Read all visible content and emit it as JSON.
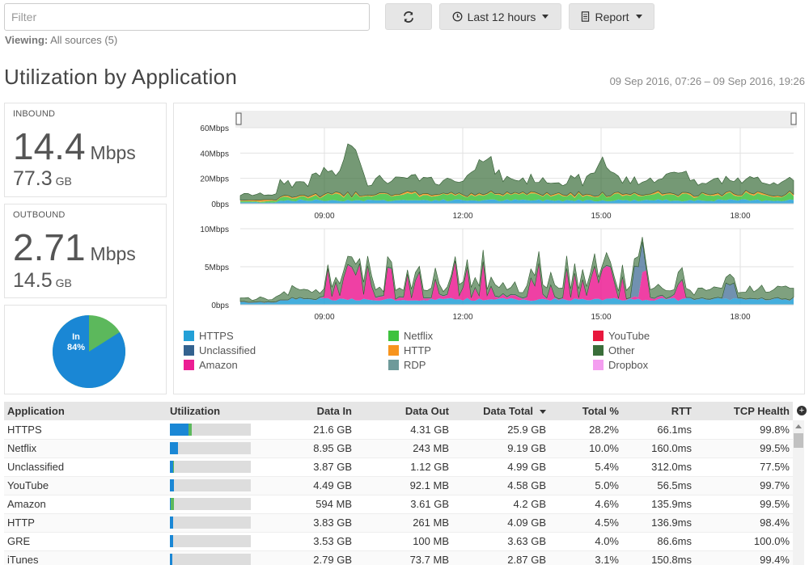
{
  "toolbar": {
    "filter_placeholder": "Filter",
    "time_range_label": "Last 12 hours",
    "report_label": "Report",
    "viewing_label": "Viewing:",
    "viewing_value": "All sources (5)"
  },
  "header": {
    "title": "Utilization by Application",
    "date_range": "09 Sep 2016, 07:26 – 09 Sep 2016, 19:26"
  },
  "inbound": {
    "label": "INBOUND",
    "rate": "14.4",
    "rate_unit": "Mbps",
    "volume": "77.3",
    "volume_unit": "GB"
  },
  "outbound": {
    "label": "OUTBOUND",
    "rate": "2.71",
    "rate_unit": "Mbps",
    "volume": "14.5",
    "volume_unit": "GB"
  },
  "pie": {
    "in_label": "In",
    "in_percent": "84%",
    "in_value": 84,
    "in_color": "#1a87d5",
    "out_color": "#5cb85c"
  },
  "chart_data": [
    {
      "type": "area",
      "title": "",
      "ylim": [
        0,
        60
      ],
      "y_ticks": [
        "60Mbps",
        "40Mbps",
        "20Mbps",
        "0bps"
      ],
      "x_ticks": [
        "09:00",
        "12:00",
        "15:00",
        "18:00"
      ],
      "series": [
        {
          "name": "HTTPS",
          "color": "#23a0d7"
        },
        {
          "name": "Netflix",
          "color": "#3ec23e"
        },
        {
          "name": "HTTP",
          "color": "#f7941d"
        },
        {
          "name": "Other",
          "color": "#3a6e3a"
        }
      ]
    },
    {
      "type": "area",
      "title": "",
      "ylim": [
        0,
        10
      ],
      "y_ticks": [
        "10Mbps",
        "5Mbps",
        "0bps"
      ],
      "x_ticks": [
        "09:00",
        "12:00",
        "15:00",
        "18:00"
      ],
      "series": [
        {
          "name": "HTTPS",
          "color": "#23a0d7"
        },
        {
          "name": "Amazon",
          "color": "#ec1e94"
        },
        {
          "name": "Unclassified",
          "color": "#34628f"
        },
        {
          "name": "Other",
          "color": "#3a6e3a"
        }
      ]
    }
  ],
  "legend": [
    {
      "name": "HTTPS",
      "color": "#23a0d7"
    },
    {
      "name": "Unclassified",
      "color": "#34628f"
    },
    {
      "name": "Amazon",
      "color": "#ec1e94"
    },
    {
      "name": "Netflix",
      "color": "#3ec23e"
    },
    {
      "name": "HTTP",
      "color": "#f7941d"
    },
    {
      "name": "RDP",
      "color": "#6e9a9a"
    },
    {
      "name": "YouTube",
      "color": "#e8173d"
    },
    {
      "name": "Other",
      "color": "#3a6e3a"
    },
    {
      "name": "Dropbox",
      "color": "#f49ef0"
    }
  ],
  "table": {
    "headers": [
      "Application",
      "Utilization",
      "Data In",
      "Data Out",
      "Data Total",
      "Total %",
      "RTT",
      "TCP Health"
    ],
    "rows": [
      {
        "app": "HTTPS",
        "util_in": 0.23,
        "util_out": 0.04,
        "data_in": "21.6 GB",
        "data_out": "4.31 GB",
        "total": "25.9 GB",
        "pct": "28.2%",
        "rtt": "66.1ms",
        "health": "99.8%"
      },
      {
        "app": "Netflix",
        "util_in": 0.1,
        "util_out": 0.0,
        "data_in": "8.95 GB",
        "data_out": "243 MB",
        "total": "9.19 GB",
        "pct": "10.0%",
        "rtt": "160.0ms",
        "health": "99.5%"
      },
      {
        "app": "Unclassified",
        "util_in": 0.04,
        "util_out": 0.01,
        "data_in": "3.87 GB",
        "data_out": "1.12 GB",
        "total": "4.99 GB",
        "pct": "5.4%",
        "rtt": "312.0ms",
        "health": "77.5%"
      },
      {
        "app": "YouTube",
        "util_in": 0.05,
        "util_out": 0.0,
        "data_in": "4.49 GB",
        "data_out": "92.1 MB",
        "total": "4.58 GB",
        "pct": "5.0%",
        "rtt": "56.5ms",
        "health": "99.7%"
      },
      {
        "app": "Amazon",
        "util_in": 0.01,
        "util_out": 0.04,
        "data_in": "594 MB",
        "data_out": "3.61 GB",
        "total": "4.2 GB",
        "pct": "4.6%",
        "rtt": "135.9ms",
        "health": "99.5%"
      },
      {
        "app": "HTTP",
        "util_in": 0.04,
        "util_out": 0.0,
        "data_in": "3.83 GB",
        "data_out": "261 MB",
        "total": "4.09 GB",
        "pct": "4.5%",
        "rtt": "136.9ms",
        "health": "98.4%"
      },
      {
        "app": "GRE",
        "util_in": 0.04,
        "util_out": 0.0,
        "data_in": "3.53 GB",
        "data_out": "100 MB",
        "total": "3.63 GB",
        "pct": "4.0%",
        "rtt": "86.6ms",
        "health": "100.0%"
      },
      {
        "app": "iTunes",
        "util_in": 0.03,
        "util_out": 0.0,
        "data_in": "2.79 GB",
        "data_out": "73.7 MB",
        "total": "2.87 GB",
        "pct": "3.1%",
        "rtt": "150.8ms",
        "health": "99.4%"
      }
    ]
  }
}
